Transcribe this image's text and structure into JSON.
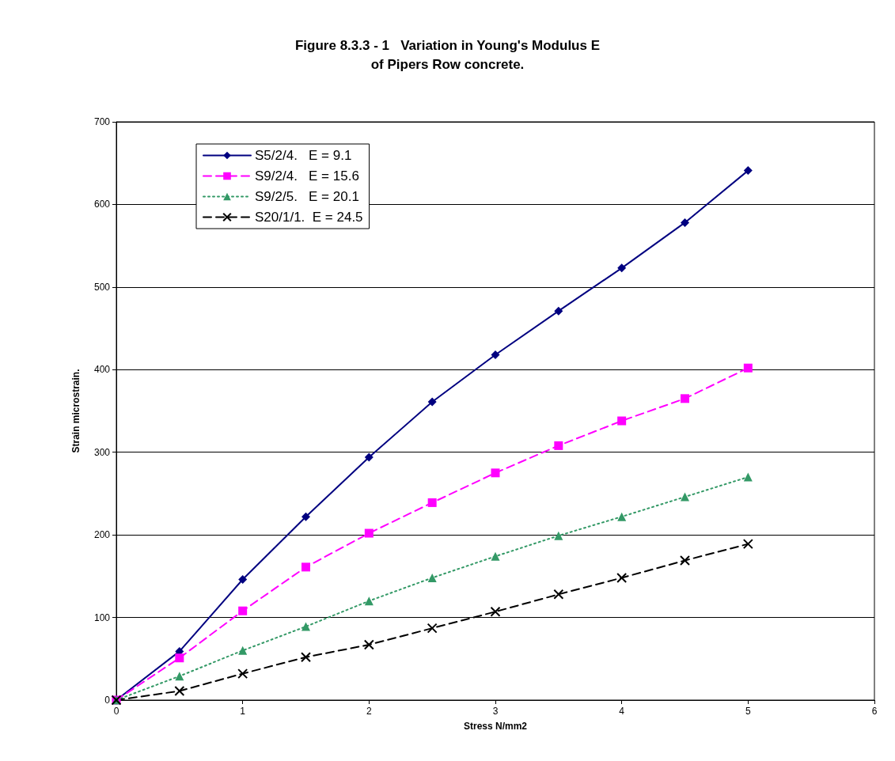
{
  "chart_data": {
    "type": "line",
    "title": "Figure 8.3.3 - 1   Variation in Young's Modulus E\nof Pipers Row concrete.",
    "xlabel": "Stress N/mm2",
    "ylabel": "Strain microstrain.",
    "x": [
      0,
      0.5,
      1,
      1.5,
      2,
      2.5,
      3,
      3.5,
      4,
      4.5,
      5
    ],
    "series": [
      {
        "name": "S5/2/4.   E = 9.1",
        "color": "#000080",
        "marker": "diamond",
        "line_style": "solid",
        "values": [
          0,
          59,
          146,
          222,
          294,
          361,
          418,
          471,
          523,
          578,
          641
        ]
      },
      {
        "name": "S9/2/4.   E = 15.6",
        "color": "#ff00ff",
        "marker": "square",
        "line_style": "dashed",
        "values": [
          0,
          51,
          108,
          161,
          202,
          239,
          275,
          308,
          338,
          365,
          402
        ]
      },
      {
        "name": "S9/2/5.   E = 20.1",
        "color": "#339966",
        "marker": "triangle",
        "line_style": "dotted",
        "values": [
          0,
          29,
          60,
          89,
          120,
          148,
          174,
          199,
          222,
          246,
          270
        ]
      },
      {
        "name": "S20/1/1.  E = 24.5",
        "color": "#000000",
        "marker": "cross",
        "line_style": "dashed",
        "values": [
          0,
          11,
          32,
          52,
          67,
          87,
          107,
          128,
          148,
          169,
          189
        ]
      }
    ],
    "xlim": [
      0,
      6
    ],
    "xticks": [
      0,
      1,
      2,
      3,
      4,
      5,
      6
    ],
    "ylim": [
      0,
      700
    ],
    "yticks": [
      0,
      100,
      200,
      300,
      400,
      500,
      600,
      700
    ],
    "grid": "y",
    "legend": "top left"
  }
}
